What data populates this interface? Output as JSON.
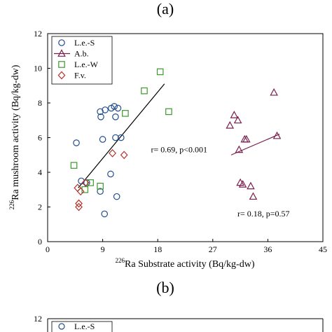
{
  "panel_a_label": "(a)",
  "panel_b_label": "(b)",
  "chart_data": [
    {
      "type": "scatter",
      "panel": "(a)",
      "xlabel_sup": "226",
      "xlabel_main": "Ra Substrate activity (Bq/kg-dw)",
      "ylabel_sup": "226",
      "ylabel_main": "Ra mushroom activity (Bq/kg-dw)",
      "xlim": [
        0,
        45
      ],
      "ylim": [
        0,
        12
      ],
      "xticks": [
        0,
        9,
        18,
        27,
        36,
        45
      ],
      "yticks": [
        0,
        2,
        4,
        6,
        8,
        10,
        12
      ],
      "legend_position": "top-left",
      "series": [
        {
          "name": "L.e.-S",
          "marker": "circle",
          "color": "#1f4e8c",
          "x": [
            4.7,
            5.5,
            6.4,
            8.6,
            8.6,
            8.7,
            9.0,
            9.3,
            9.4,
            10.3,
            10.4,
            10.9,
            11.1,
            11.1,
            11.3,
            11.5,
            12.0
          ],
          "y": [
            5.7,
            3.5,
            3.4,
            2.9,
            7.5,
            7.2,
            5.9,
            1.6,
            7.6,
            3.9,
            7.7,
            7.8,
            7.2,
            6.0,
            2.6,
            7.7,
            6.0
          ]
        },
        {
          "name": "A.b.",
          "marker": "triangle",
          "color": "#7a1f4d",
          "x": [
            29.8,
            30.5,
            31.1,
            31.3,
            31.5,
            31.9,
            32.2,
            32.5,
            33.2,
            33.6,
            37.0,
            37.5
          ],
          "y": [
            6.7,
            7.3,
            7.0,
            5.3,
            3.4,
            3.3,
            5.9,
            5.9,
            3.2,
            2.6,
            8.6,
            6.1
          ]
        },
        {
          "name": "L.e.-W",
          "marker": "square",
          "color": "#3a9a2a",
          "x": [
            4.3,
            6.1,
            7.0,
            8.6,
            12.7,
            15.8,
            18.4,
            19.8
          ],
          "y": [
            4.4,
            3.0,
            3.4,
            3.2,
            7.4,
            8.7,
            9.8,
            7.5
          ]
        },
        {
          "name": "F.v.",
          "marker": "diamond",
          "color": "#b5302c",
          "x": [
            4.9,
            5.1,
            5.1,
            5.4,
            6.2,
            10.6,
            12.5
          ],
          "y": [
            3.1,
            2.2,
            2.0,
            2.9,
            3.4,
            5.1,
            5.0
          ]
        }
      ],
      "fit_lines": [
        {
          "name": "fit-left",
          "x": [
            5.0,
            19.1
          ],
          "y": [
            3.1,
            9.1
          ]
        },
        {
          "name": "fit-right",
          "x": [
            30.0,
            37.9
          ],
          "y": [
            5.0,
            6.2
          ]
        }
      ],
      "annotations": [
        {
          "text": "r= 0.69, p<0.001",
          "x": 21.5,
          "y": 5.15
        },
        {
          "text": "r= 0.18, p=0.57",
          "x": 35.3,
          "y": 1.45
        }
      ]
    },
    {
      "type": "scatter",
      "panel": "(b)",
      "ylim_max_label": "12",
      "legend_first": "L.e.-S"
    }
  ]
}
